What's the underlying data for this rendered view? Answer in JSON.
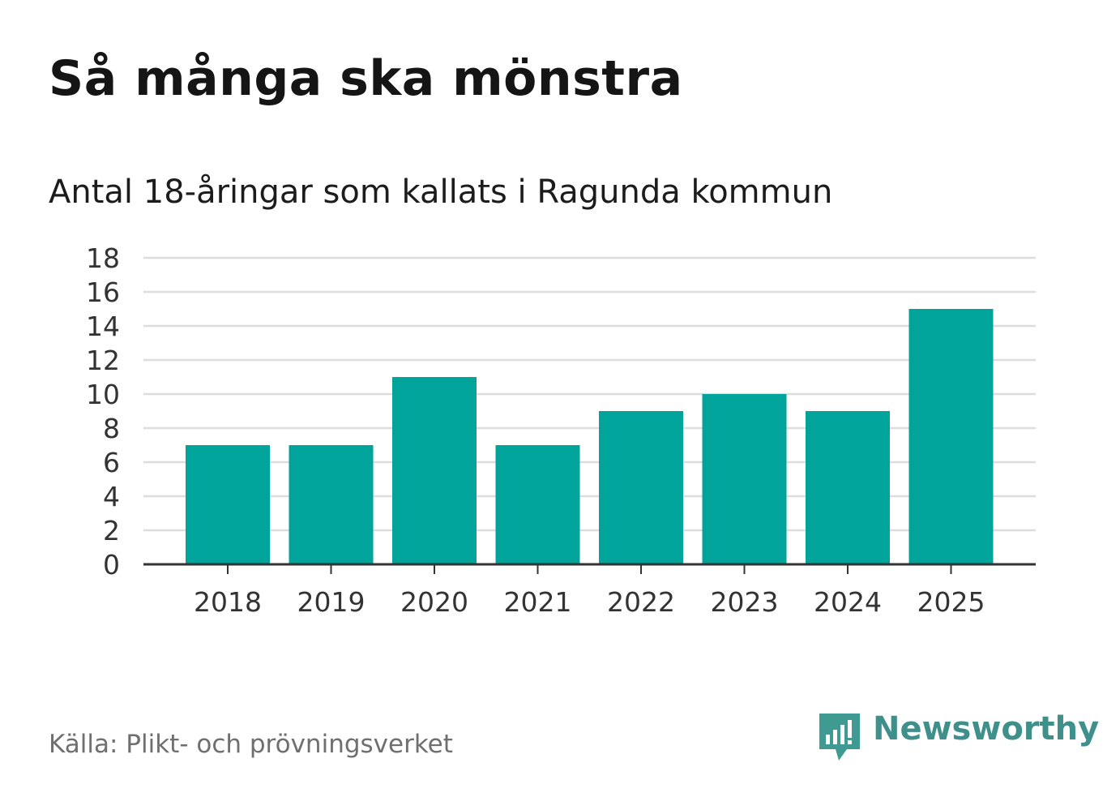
{
  "title": "Så många ska mönstra",
  "subtitle": "Antal 18-åringar som kallats i Ragunda kommun",
  "source": "Källa: Plikt- och prövningsverket",
  "brand": {
    "name": "Newsworthy",
    "icon": "bar-chart-speech-bubble-icon",
    "color": "#3f9a94"
  },
  "colors": {
    "bar": "#00a49a",
    "grid": "#dddddd",
    "axis": "#333333"
  },
  "chart_data": {
    "type": "bar",
    "title": "Så många ska mönstra",
    "subtitle": "Antal 18-åringar som kallats i Ragunda kommun",
    "xlabel": "",
    "ylabel": "",
    "categories": [
      "2018",
      "2019",
      "2020",
      "2021",
      "2022",
      "2023",
      "2024",
      "2025"
    ],
    "values": [
      7,
      7,
      11,
      7,
      9,
      10,
      9,
      15
    ],
    "ylim": [
      0,
      18
    ],
    "yticks": [
      0,
      2,
      4,
      6,
      8,
      10,
      12,
      14,
      16,
      18
    ],
    "grid": true,
    "legend": "none"
  }
}
